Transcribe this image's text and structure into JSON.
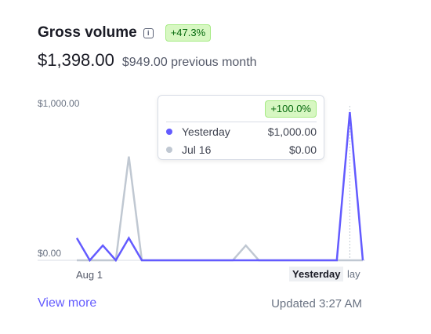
{
  "header": {
    "title": "Gross volume",
    "change_badge": "+47.3%",
    "info_icon": "info-icon"
  },
  "summary": {
    "current": "$1,398.00",
    "previous": "$949.00 previous month"
  },
  "tooltip": {
    "badge": "+100.0%",
    "rows": [
      {
        "label": "Yesterday",
        "value": "$1,000.00",
        "color": "#635bff"
      },
      {
        "label": "Jul 16",
        "value": "$0.00",
        "color": "#c0c8d2"
      }
    ]
  },
  "footer": {
    "link": "View more",
    "status": "Updated 3:27 AM"
  },
  "chart_data": {
    "type": "line",
    "y_tick_labels": [
      "$1,000.00",
      "$0.00"
    ],
    "ylim": [
      0,
      1000
    ],
    "x_tick_labels": [
      "Aug 1",
      "Yesterday",
      "lay"
    ],
    "grid": false,
    "colors": {
      "current": "#635bff",
      "previous": "#c0c8d2"
    },
    "series": [
      {
        "key": "current",
        "values": [
          150,
          0,
          100,
          0,
          150,
          0,
          0,
          0,
          0,
          0,
          0,
          0,
          0,
          0,
          0,
          0,
          0,
          0,
          0,
          0,
          0,
          1000,
          0
        ]
      },
      {
        "key": "previous",
        "values": [
          0,
          0,
          0,
          0,
          700,
          0,
          0,
          0,
          0,
          0,
          0,
          0,
          0,
          100,
          0,
          0,
          0,
          0,
          0,
          0,
          0,
          0,
          0
        ]
      }
    ],
    "highlight_index": 21
  }
}
